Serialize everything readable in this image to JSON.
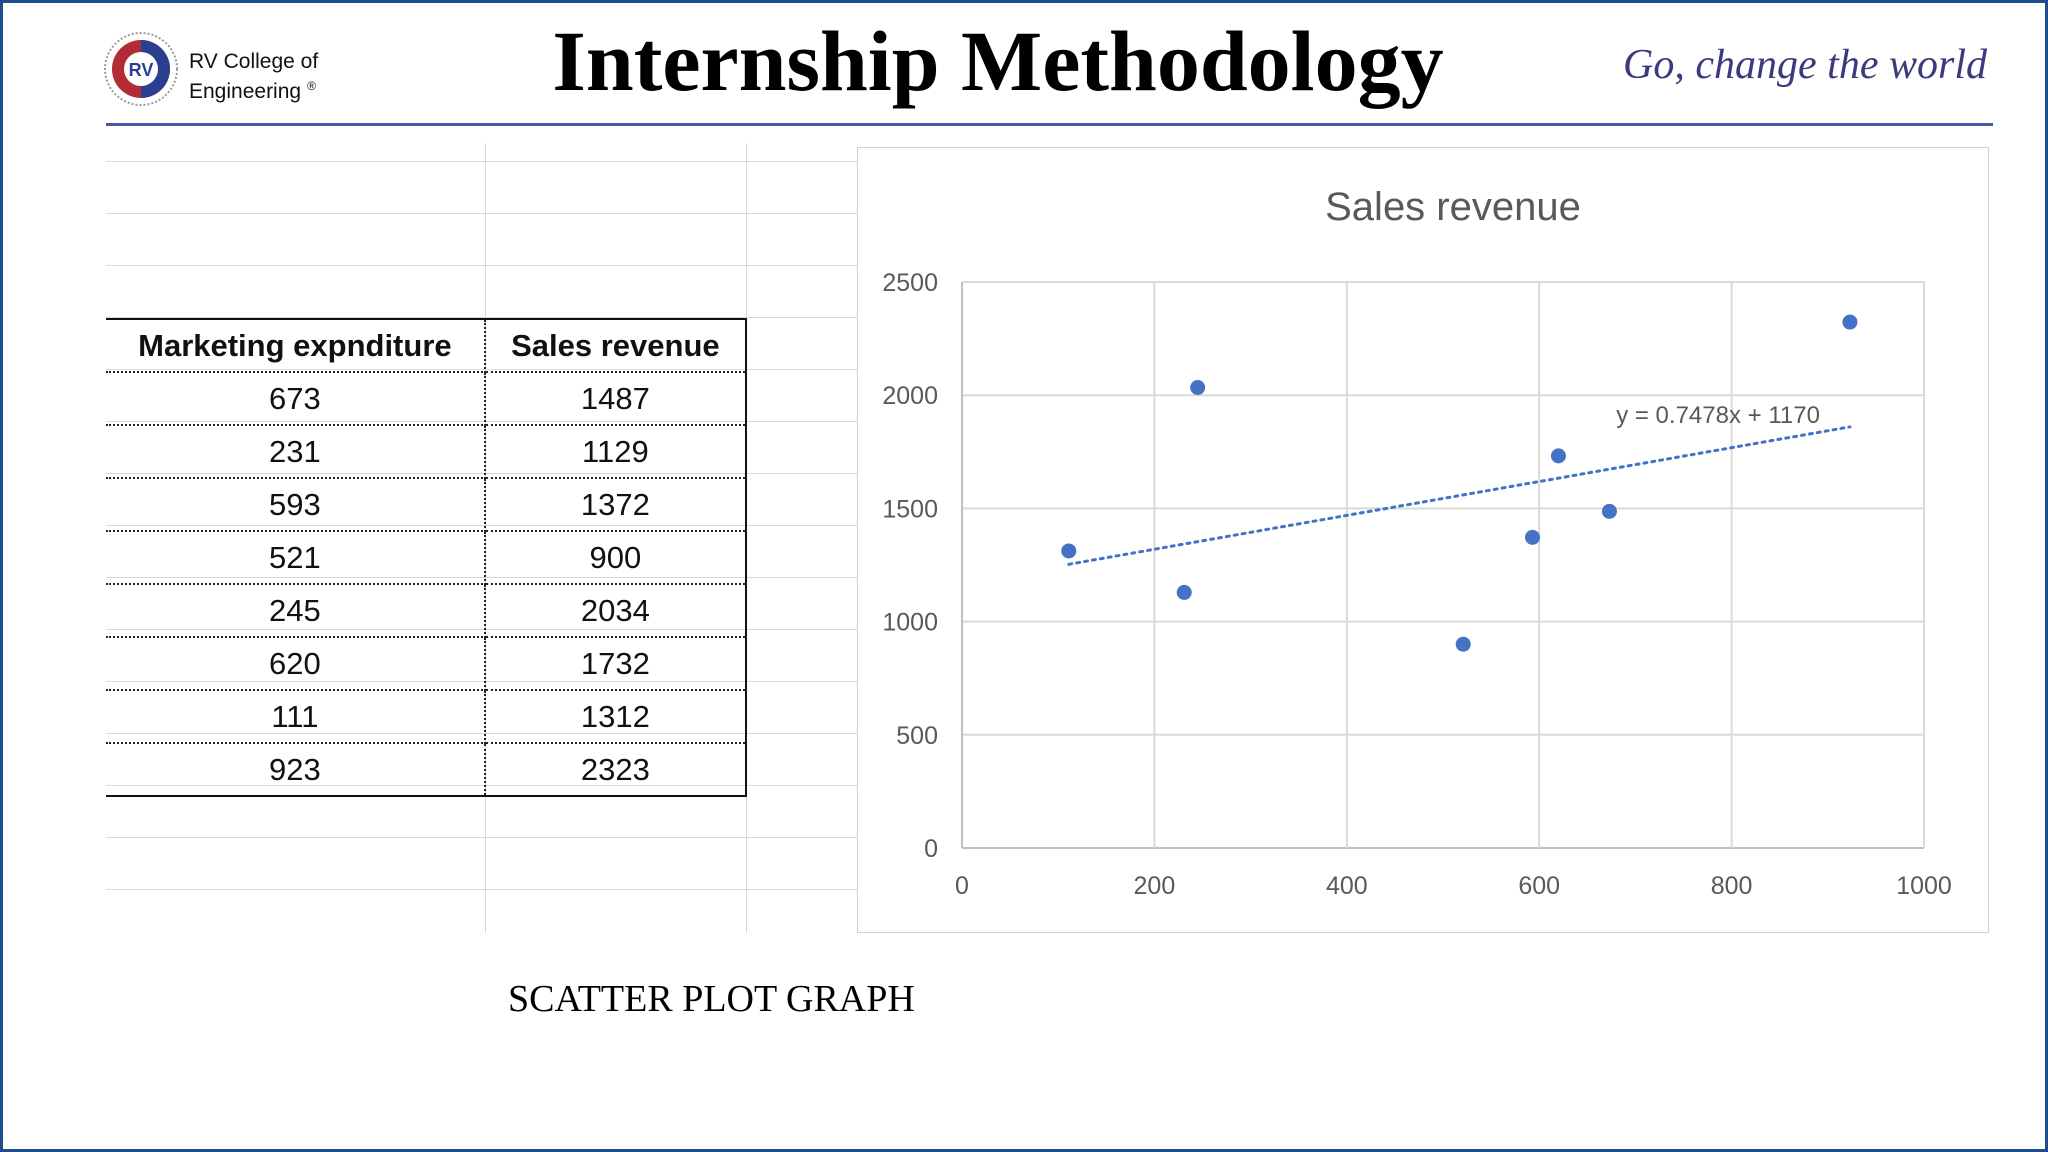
{
  "header": {
    "logo_text": "RV",
    "brand_line1": "RV College of",
    "brand_line2": "Engineering",
    "brand_reg": "®",
    "title": "Internship Methodology",
    "tagline": "Go, change the world"
  },
  "table": {
    "columns": [
      "Marketing expnditure",
      "Sales revenue"
    ],
    "rows": [
      [
        "673",
        "1487"
      ],
      [
        "231",
        "1129"
      ],
      [
        "593",
        "1372"
      ],
      [
        "521",
        "900"
      ],
      [
        "245",
        "2034"
      ],
      [
        "620",
        "1732"
      ],
      [
        "111",
        "1312"
      ],
      [
        "923",
        "2323"
      ]
    ]
  },
  "caption": "SCATTER PLOT GRAPH",
  "colors": {
    "border": "#1f4e8c",
    "rule": "#4a56a6",
    "tagline": "#3b3a7e",
    "marker": "#4472c4",
    "trendline": "#4472c4"
  },
  "chart_data": {
    "type": "scatter",
    "title": "Sales revenue",
    "xlabel": "",
    "ylabel": "",
    "xlim": [
      0,
      1000
    ],
    "ylim": [
      0,
      2500
    ],
    "xticks": [
      0,
      200,
      400,
      600,
      800,
      1000
    ],
    "yticks": [
      0,
      500,
      1000,
      1500,
      2000,
      2500
    ],
    "grid": true,
    "series": [
      {
        "x": [
          673,
          231,
          593,
          521,
          245,
          620,
          111,
          923
        ],
        "y": [
          1487,
          1129,
          1372,
          900,
          2034,
          1732,
          1312,
          2323
        ]
      }
    ],
    "trendline": {
      "type": "linear",
      "slope": 0.7478,
      "intercept": 1170,
      "x_range": [
        111,
        923
      ],
      "label": "y = 0.7478x + 1170"
    }
  }
}
